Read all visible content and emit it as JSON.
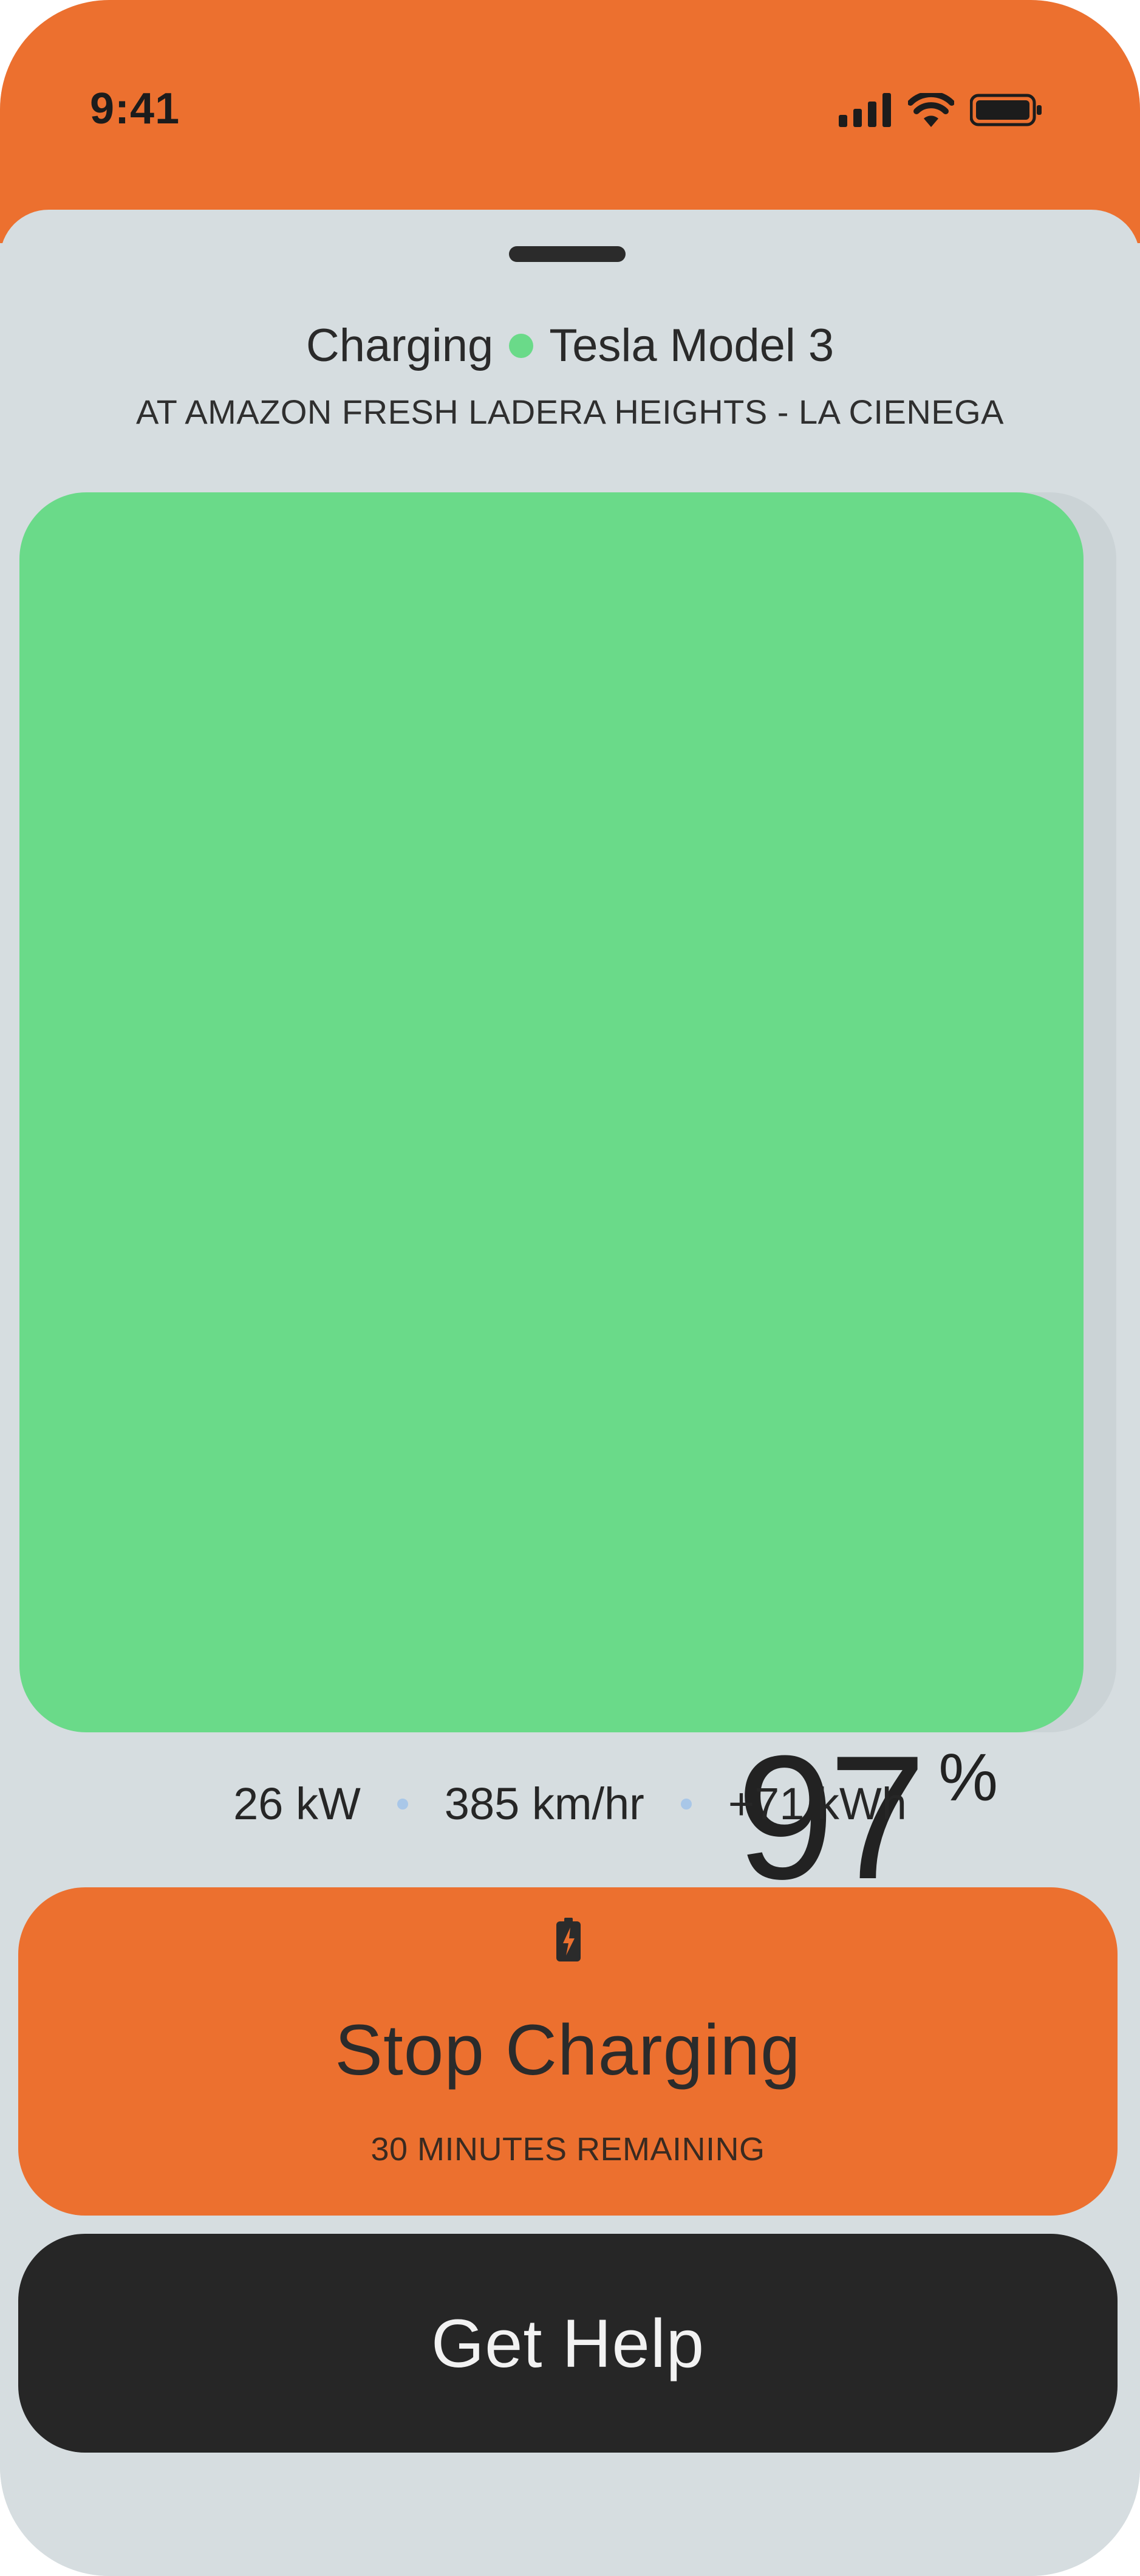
{
  "status_bar": {
    "time": "9:41",
    "color": "#ec702f",
    "icons": [
      "signal-icon",
      "wifi-icon",
      "battery-icon"
    ]
  },
  "header": {
    "status": "Charging",
    "status_dot_color": "#6ada89",
    "vehicle": "Tesla Model 3",
    "location": "AT AMAZON FRESH LADERA HEIGHTS - LA CIENEGA"
  },
  "battery": {
    "level_number": "97",
    "unit": "%",
    "fill_fraction": 0.97,
    "fill_color": "#6ada89"
  },
  "stats": {
    "power": "26 kW",
    "rate": "385 km/hr",
    "energy": "+71 kWh"
  },
  "stop_button": {
    "icon": "battery-charging-icon",
    "label": "Stop Charging",
    "subtitle": "30 MINUTES REMAINING",
    "color": "#ec702f"
  },
  "help_button": {
    "label": "Get Help",
    "color": "#262626"
  }
}
